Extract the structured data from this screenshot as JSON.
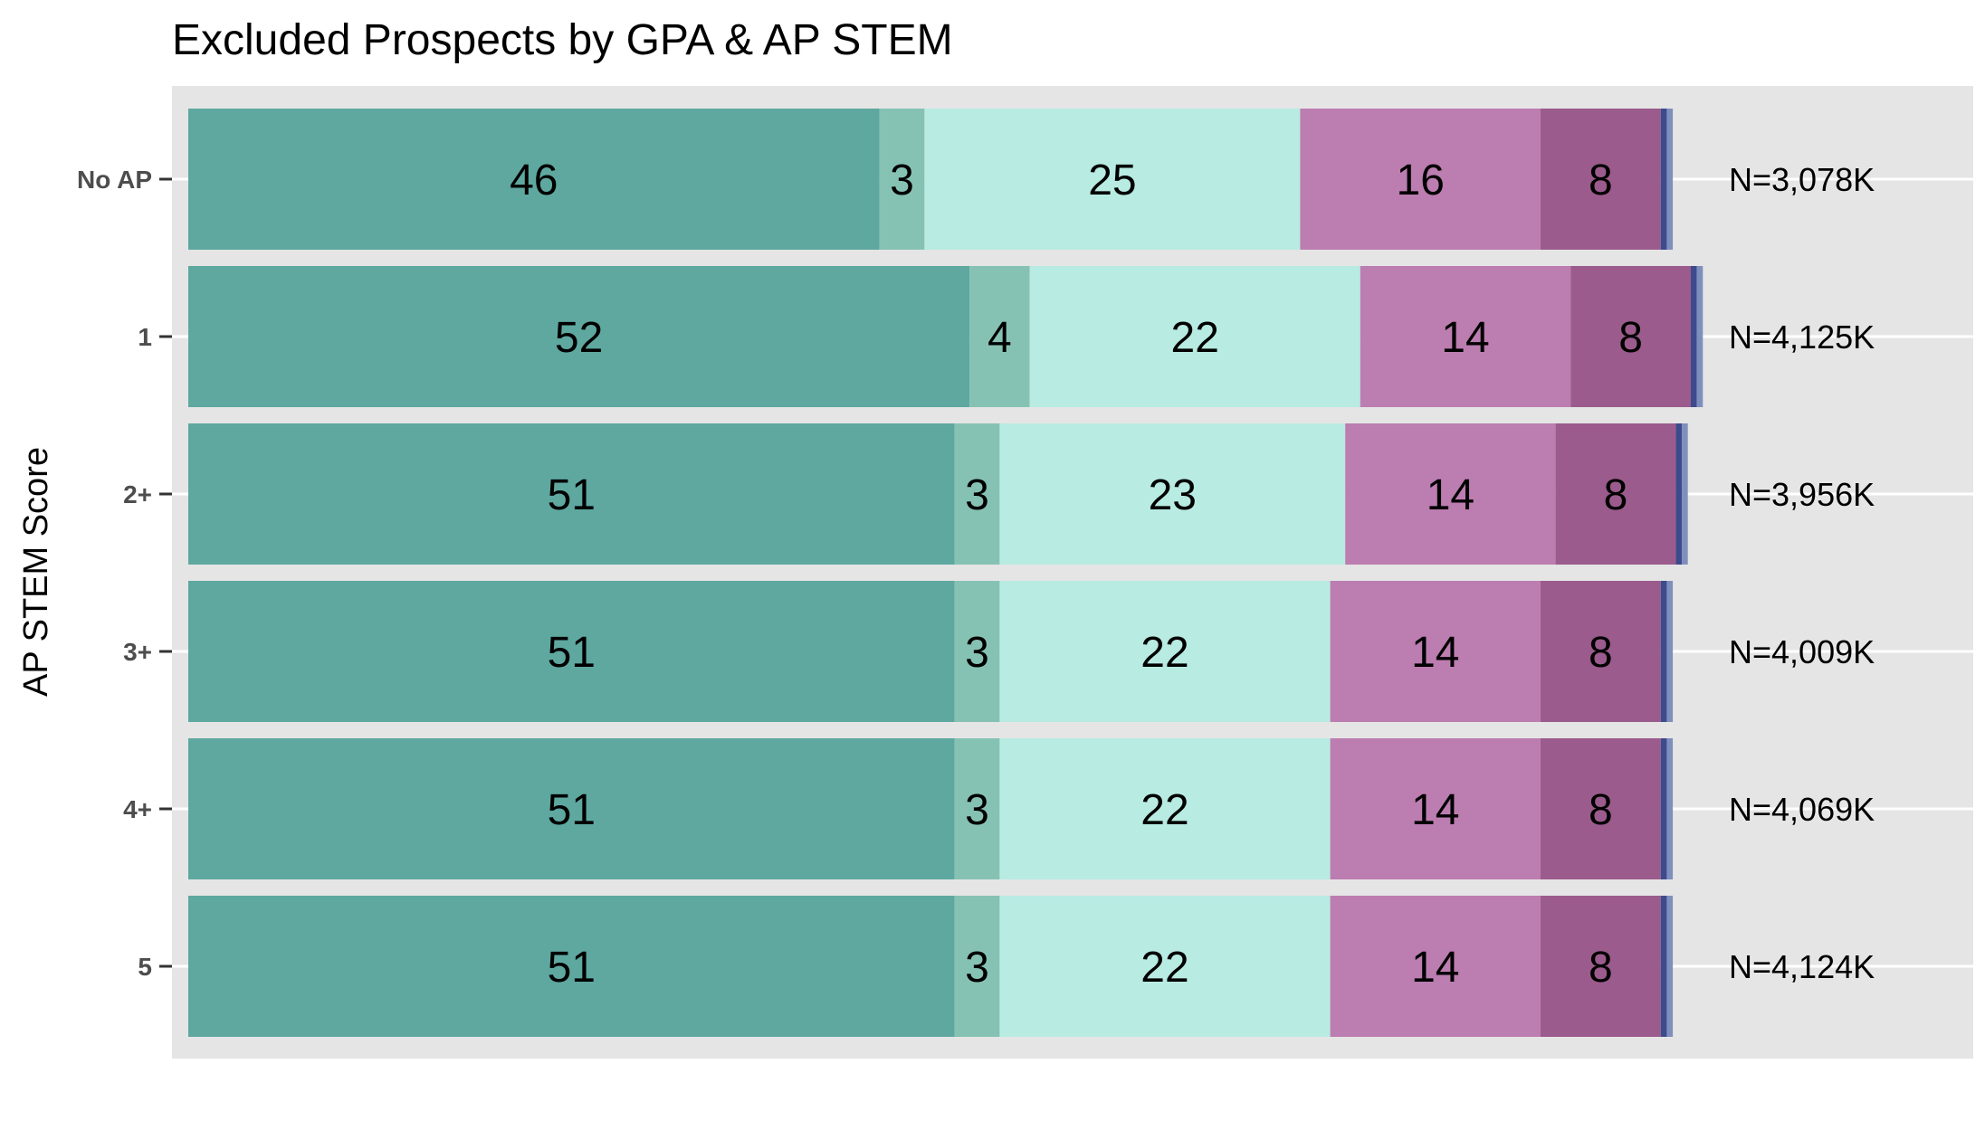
{
  "chart_data": {
    "type": "bar",
    "orientation": "horizontal",
    "stacked": true,
    "title": "Excluded Prospects by GPA & AP STEM",
    "xlabel": "",
    "ylabel": "AP STEM Score",
    "categories": [
      "No AP",
      "1",
      "2+",
      "3+",
      "4+",
      "5"
    ],
    "n_labels": [
      "N=3,078K",
      "N=4,125K",
      "N=3,956K",
      "N=4,009K",
      "N=4,069K",
      "N=4,124K"
    ],
    "series": [
      {
        "color": "#5ea8a0",
        "values": [
          46,
          52,
          51,
          51,
          51,
          51
        ]
      },
      {
        "color": "#86c2b3",
        "values": [
          3,
          4,
          3,
          3,
          3,
          3
        ]
      },
      {
        "color": "#b8ebe2",
        "values": [
          25,
          22,
          23,
          22,
          22,
          22
        ]
      },
      {
        "color": "#bc7db0",
        "values": [
          16,
          14,
          14,
          14,
          14,
          14
        ]
      },
      {
        "color": "#9b5b8c",
        "values": [
          8,
          8,
          8,
          8,
          8,
          8
        ]
      },
      {
        "color": "#3d4a8c",
        "values": [
          0.4,
          0.4,
          0.4,
          0.4,
          0.4,
          0.4
        ]
      },
      {
        "color": "#7f8fbd",
        "values": [
          0.4,
          0.4,
          0.4,
          0.4,
          0.4,
          0.4
        ]
      }
    ],
    "xlim": [
      0,
      100
    ],
    "legend": "none",
    "panel_background": "#e5e5e5",
    "grid": true
  }
}
